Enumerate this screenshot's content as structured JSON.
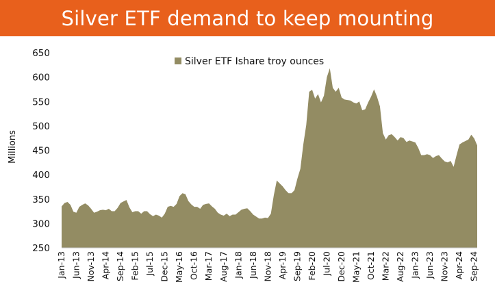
{
  "title": "Silver ETF demand to keep mounting",
  "chart_data": {
    "type": "area",
    "title": "Silver ETF demand to keep mounting",
    "xlabel": "",
    "ylabel": "Millions",
    "ylim": [
      250,
      650
    ],
    "yticks": [
      250,
      300,
      350,
      400,
      450,
      500,
      550,
      600,
      650
    ],
    "area_color": "#938c63",
    "xtick_labels": [
      "Jan-13",
      "Jun-13",
      "Nov-13",
      "Apr-14",
      "Sep-14",
      "Feb-15",
      "Jul-15",
      "Dec-15",
      "May-16",
      "Oct-16",
      "Mar-17",
      "Aug-17",
      "Jan-18",
      "Jun-18",
      "Nov-18",
      "Apr-19",
      "Sep-19",
      "Feb-20",
      "Jul-20",
      "Dec-20",
      "May-21",
      "Oct-21",
      "Mar-22",
      "Aug-22",
      "Jan-23",
      "Jun-23",
      "Nov-23",
      "Apr-24",
      "Sep-24"
    ],
    "series": [
      {
        "name": "Silver ETF Ishare troy ounces",
        "values": [
          335,
          342,
          344,
          338,
          324,
          322,
          334,
          338,
          341,
          337,
          330,
          322,
          324,
          327,
          328,
          327,
          330,
          325,
          325,
          332,
          342,
          345,
          348,
          333,
          323,
          325,
          325,
          320,
          325,
          325,
          319,
          315,
          318,
          316,
          312,
          320,
          334,
          336,
          334,
          340,
          356,
          362,
          360,
          346,
          339,
          334,
          334,
          330,
          338,
          340,
          341,
          335,
          330,
          322,
          318,
          316,
          320,
          315,
          318,
          318,
          323,
          328,
          330,
          331,
          325,
          318,
          314,
          310,
          310,
          312,
          311,
          320,
          358,
          388,
          382,
          376,
          368,
          362,
          362,
          368,
          392,
          412,
          462,
          502,
          570,
          574,
          556,
          565,
          548,
          562,
          600,
          618,
          578,
          570,
          578,
          558,
          554,
          553,
          552,
          548,
          546,
          550,
          532,
          534,
          548,
          560,
          575,
          560,
          540,
          485,
          472,
          481,
          483,
          477,
          470,
          477,
          475,
          467,
          470,
          468,
          466,
          455,
          440,
          440,
          442,
          440,
          434,
          438,
          440,
          433,
          427,
          425,
          428,
          416,
          440,
          462,
          466,
          469,
          472,
          482,
          474,
          460
        ]
      }
    ],
    "legend": "top-center"
  }
}
